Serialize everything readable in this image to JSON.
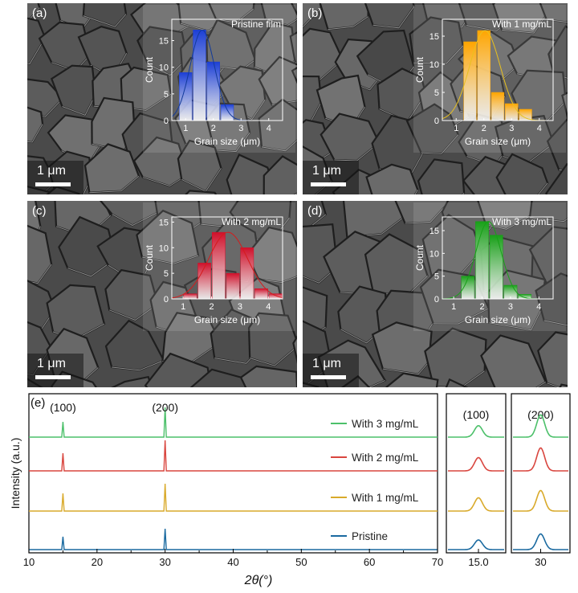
{
  "colors": {
    "blue": "#1a5aa8",
    "orange": "#e0a800",
    "red": "#d1222a",
    "green": "#2aa32a",
    "pristine": "#1a6aa0",
    "w1": "#d9aa2b",
    "w2": "#d9463f",
    "w3": "#4cc06a"
  },
  "panels": [
    {
      "label": "(a)",
      "scale_label": "1 μm",
      "inset": {
        "title": "Pristine film",
        "xlabel": "Grain size (μm)",
        "ylabel": "Count",
        "color": "#1c3fd6",
        "fit_color": "#123a9a"
      }
    },
    {
      "label": "(b)",
      "scale_label": "1 μm",
      "inset": {
        "title": "With 1 mg/mL",
        "xlabel": "Grain size (μm)",
        "ylabel": "Count",
        "color": "#ffa500",
        "fit_color": "#e8c020"
      }
    },
    {
      "label": "(c)",
      "scale_label": "1 μm",
      "inset": {
        "title": "With 2 mg/mL",
        "xlabel": "Grain size (μm)",
        "ylabel": "Count",
        "color": "#d0102a",
        "fit_color": "#d41c1c"
      }
    },
    {
      "label": "(d)",
      "scale_label": "1 μm",
      "inset": {
        "title": "With 3 mg/mL",
        "xlabel": "Grain size (μm)",
        "ylabel": "Count",
        "color": "#18a018",
        "fit_color": "#18a018"
      }
    }
  ],
  "chart_data": [
    {
      "type": "bar",
      "title": "Pristine film",
      "xlabel": "Grain size (μm)",
      "ylabel": "Count",
      "xlim": [
        0.5,
        4.5
      ],
      "ylim": [
        0,
        19
      ],
      "xticks": [
        1,
        2,
        3,
        4
      ],
      "yticks": [
        0,
        5,
        10,
        15
      ],
      "centers": [
        1.0,
        1.5,
        2.0,
        2.5
      ],
      "values": [
        9,
        17,
        11,
        3
      ]
    },
    {
      "type": "bar",
      "title": "With 1 mg/mL",
      "xlabel": "Grain size (μm)",
      "ylabel": "Count",
      "xlim": [
        0.5,
        4.5
      ],
      "ylim": [
        0,
        18
      ],
      "xticks": [
        1,
        2,
        3,
        4
      ],
      "yticks": [
        0,
        5,
        10,
        15
      ],
      "centers": [
        1.5,
        2.0,
        2.5,
        3.0,
        3.5
      ],
      "values": [
        14,
        16,
        5,
        3,
        2
      ]
    },
    {
      "type": "bar",
      "title": "With 2 mg/mL",
      "xlabel": "Grain size (μm)",
      "ylabel": "Count",
      "xlim": [
        0.6,
        4.5
      ],
      "ylim": [
        0,
        16
      ],
      "xticks": [
        1,
        2,
        3,
        4
      ],
      "yticks": [
        0,
        5,
        10,
        15
      ],
      "centers": [
        1.25,
        1.75,
        2.25,
        2.75,
        3.25,
        3.75,
        4.25
      ],
      "values": [
        1,
        7,
        13,
        5,
        10,
        2,
        1
      ]
    },
    {
      "type": "bar",
      "title": "With 3 mg/mL",
      "xlabel": "Grain size (μm)",
      "ylabel": "Count",
      "xlim": [
        0.6,
        4.5
      ],
      "ylim": [
        0,
        18
      ],
      "xticks": [
        1,
        2,
        3,
        4
      ],
      "yticks": [
        0,
        5,
        10,
        15
      ],
      "centers": [
        1.0,
        1.5,
        2.0,
        2.5,
        3.0,
        3.5
      ],
      "values": [
        0,
        5,
        17,
        14,
        3,
        1
      ]
    },
    {
      "type": "line",
      "label": "(e)",
      "xlabel": "2θ(°)",
      "ylabel": "Intensity (a.u.)",
      "xlim": [
        10,
        70
      ],
      "xticks": [
        10,
        20,
        30,
        40,
        50,
        60,
        70
      ],
      "peak_labels": [
        {
          "text": "(100)",
          "x": 15.0
        },
        {
          "text": "(200)",
          "x": 30.0
        }
      ],
      "series": [
        {
          "name": "With 3 mg/mL",
          "color": "#4cc06a",
          "peaks": [
            {
              "x": 15.0,
              "h": 19
            },
            {
              "x": 30.0,
              "h": 37
            }
          ]
        },
        {
          "name": "With 2 mg/mL",
          "color": "#d9463f",
          "peaks": [
            {
              "x": 15.0,
              "h": 22
            },
            {
              "x": 30.0,
              "h": 38
            }
          ]
        },
        {
          "name": "With 1 mg/mL",
          "color": "#d9aa2b",
          "peaks": [
            {
              "x": 15.0,
              "h": 22
            },
            {
              "x": 30.0,
              "h": 34
            }
          ]
        },
        {
          "name": "Pristine",
          "color": "#1a6aa0",
          "peaks": [
            {
              "x": 15.0,
              "h": 16
            },
            {
              "x": 30.0,
              "h": 26
            }
          ]
        }
      ],
      "zoom_panels": [
        {
          "title": "(100)",
          "center": 15.0,
          "xtick_label": "15.0"
        },
        {
          "title": "(200)",
          "center": 30.0,
          "xtick_label": "30"
        }
      ]
    }
  ]
}
